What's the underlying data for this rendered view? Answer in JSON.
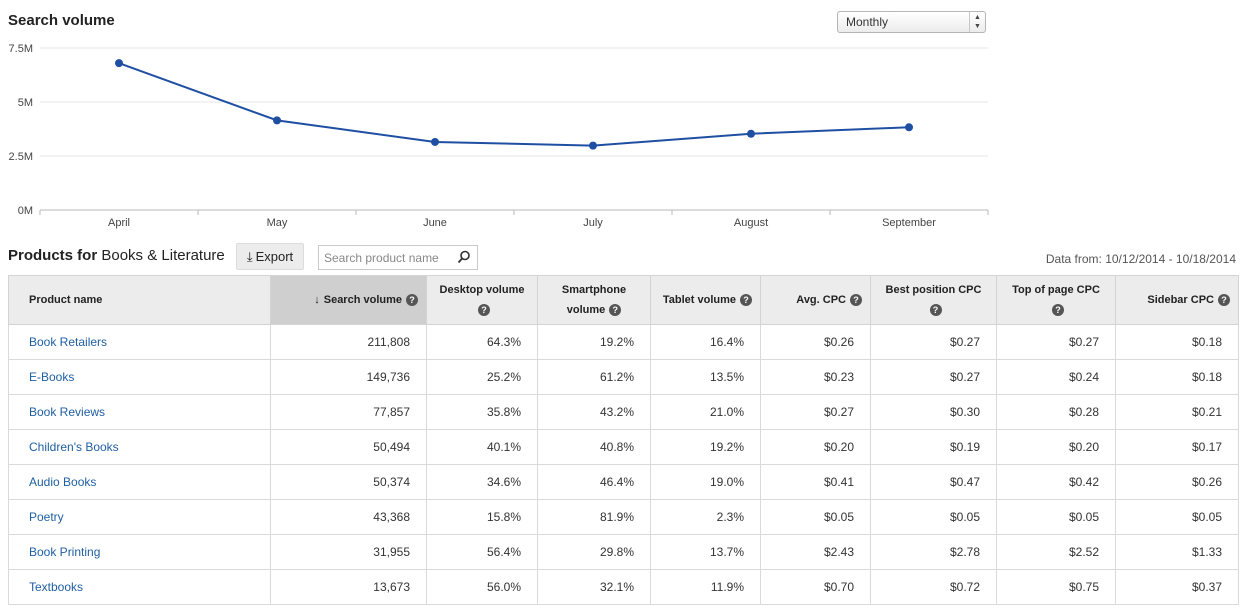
{
  "chart_section": {
    "title": "Search volume",
    "period": "Monthly"
  },
  "chart_data": {
    "type": "line",
    "categories": [
      "April",
      "May",
      "June",
      "July",
      "August",
      "September"
    ],
    "series": [
      {
        "values": [
          6800000,
          4150000,
          3150000,
          2980000,
          3530000,
          3830000
        ]
      }
    ],
    "y_ticks": [
      "0M",
      "2.5M",
      "5M",
      "7.5M"
    ],
    "ylim": [
      0,
      7500000
    ],
    "grid": true,
    "line_color": "#1f4fa3"
  },
  "products": {
    "title_bold": "Products for",
    "title_category": "Books & Literature",
    "export_label": "Export",
    "search_placeholder": "Search product name",
    "date_range": "Data from: 10/12/2014 - 10/18/2014",
    "columns": [
      {
        "label": "Product name"
      },
      {
        "label": "Search volume",
        "sorted": true
      },
      {
        "label": "Desktop volume"
      },
      {
        "label": "Smartphone volume"
      },
      {
        "label": "Tablet volume"
      },
      {
        "label": "Avg. CPC"
      },
      {
        "label": "Best position CPC"
      },
      {
        "label": "Top of page CPC"
      },
      {
        "label": "Sidebar CPC"
      }
    ],
    "help_glyph": "?",
    "rows": [
      [
        "Book Retailers",
        "211,808",
        "64.3%",
        "19.2%",
        "16.4%",
        "$0.26",
        "$0.27",
        "$0.27",
        "$0.18"
      ],
      [
        "E-Books",
        "149,736",
        "25.2%",
        "61.2%",
        "13.5%",
        "$0.23",
        "$0.27",
        "$0.24",
        "$0.18"
      ],
      [
        "Book Reviews",
        "77,857",
        "35.8%",
        "43.2%",
        "21.0%",
        "$0.27",
        "$0.30",
        "$0.28",
        "$0.21"
      ],
      [
        "Children's Books",
        "50,494",
        "40.1%",
        "40.8%",
        "19.2%",
        "$0.20",
        "$0.19",
        "$0.20",
        "$0.17"
      ],
      [
        "Audio Books",
        "50,374",
        "34.6%",
        "46.4%",
        "19.0%",
        "$0.41",
        "$0.47",
        "$0.42",
        "$0.26"
      ],
      [
        "Poetry",
        "43,368",
        "15.8%",
        "81.9%",
        "2.3%",
        "$0.05",
        "$0.05",
        "$0.05",
        "$0.05"
      ],
      [
        "Book Printing",
        "31,955",
        "56.4%",
        "29.8%",
        "13.7%",
        "$2.43",
        "$2.78",
        "$2.52",
        "$1.33"
      ],
      [
        "Textbooks",
        "13,673",
        "56.0%",
        "32.1%",
        "11.9%",
        "$0.70",
        "$0.72",
        "$0.75",
        "$0.37"
      ]
    ]
  }
}
